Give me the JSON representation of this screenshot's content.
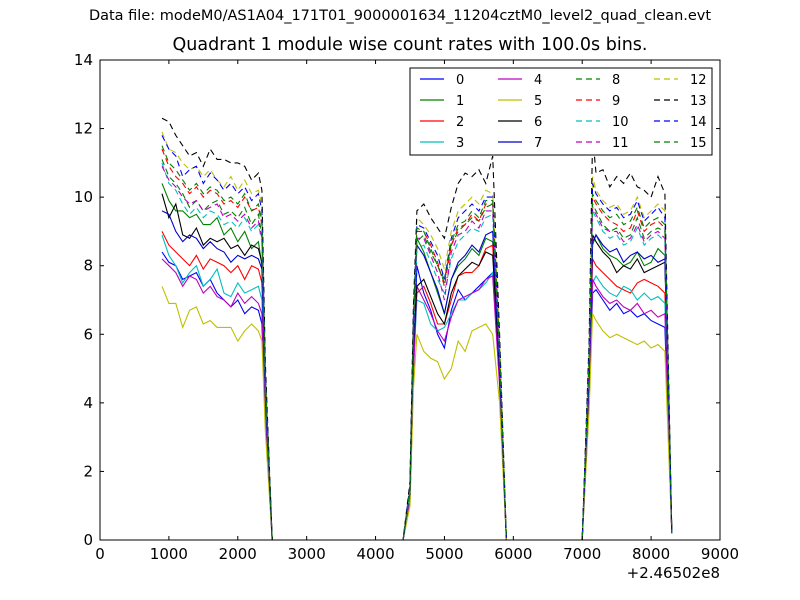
{
  "figure": {
    "suptitle": "Data file: modeM0/AS1A04_171T01_9000001634_11204cztM0_level2_quad_clean.evt"
  },
  "chart_data": {
    "type": "line",
    "title": "Quadrant 1 module wise count rates with 100.0s bins.",
    "xlabel": "",
    "ylabel": "",
    "x_offset_label": "+2.46502e8",
    "xlim": [
      0,
      9000
    ],
    "ylim": [
      0,
      14
    ],
    "xticks": [
      "0",
      "1000",
      "2000",
      "3000",
      "4000",
      "5000",
      "6000",
      "7000",
      "8000",
      "9000"
    ],
    "yticks": [
      "0",
      "2",
      "4",
      "6",
      "8",
      "10",
      "12",
      "14"
    ],
    "grid": false,
    "legend": {
      "placement": "top-right",
      "columns": 4
    },
    "x": [
      900,
      1000,
      1100,
      1200,
      1300,
      1400,
      1500,
      1600,
      1700,
      1800,
      1900,
      2000,
      2100,
      2200,
      2300,
      2350,
      2400,
      2500,
      3000,
      4000,
      4400,
      4500,
      4550,
      4600,
      4700,
      4800,
      4900,
      5000,
      5100,
      5200,
      5300,
      5400,
      5500,
      5600,
      5700,
      5800,
      5900,
      6000,
      7000,
      7100,
      7150,
      7200,
      7300,
      7400,
      7500,
      7600,
      7700,
      7800,
      7900,
      8000,
      8100,
      8200,
      8300
    ],
    "series": [
      {
        "name": "0",
        "color": "#0000ff",
        "dash": "solid",
        "values": [
          8.4,
          8.1,
          8.0,
          7.6,
          7.7,
          7.8,
          7.4,
          7.6,
          7.2,
          7.0,
          6.8,
          7.0,
          6.6,
          6.8,
          6.7,
          6.3,
          3.6,
          0,
          0,
          0,
          0,
          1.2,
          5.0,
          8.0,
          7.2,
          6.7,
          6.0,
          5.6,
          6.7,
          7.3,
          7.0,
          7.2,
          7.4,
          7.6,
          7.8,
          4.6,
          0,
          0,
          0,
          4.0,
          7.2,
          7.3,
          7.0,
          6.7,
          6.9,
          6.6,
          6.7,
          6.5,
          6.6,
          6.4,
          6.3,
          6.2,
          0.2
        ]
      },
      {
        "name": "1",
        "color": "#008000",
        "dash": "solid",
        "values": [
          10.4,
          9.9,
          9.6,
          9.6,
          9.4,
          9.5,
          9.2,
          9.2,
          9.4,
          8.9,
          9.1,
          8.7,
          9.0,
          8.5,
          8.7,
          8.0,
          4.2,
          0,
          0,
          0,
          0,
          1.4,
          5.8,
          8.8,
          8.4,
          7.8,
          7.2,
          6.6,
          7.6,
          8.0,
          8.2,
          8.5,
          8.3,
          8.8,
          8.7,
          5.0,
          0,
          0,
          0,
          4.8,
          8.6,
          8.9,
          8.5,
          8.3,
          8.2,
          8.0,
          8.1,
          8.4,
          8.0,
          8.1,
          8.5,
          8.3,
          0.2
        ]
      },
      {
        "name": "2",
        "color": "#ff0000",
        "dash": "solid",
        "values": [
          9.0,
          8.6,
          8.4,
          8.2,
          8.0,
          8.3,
          7.9,
          8.2,
          8.1,
          8.0,
          7.8,
          8.0,
          7.6,
          8.0,
          7.9,
          7.5,
          4.0,
          0,
          0,
          0,
          0,
          1.3,
          5.2,
          7.2,
          7.4,
          6.9,
          6.3,
          6.3,
          7.0,
          7.7,
          7.8,
          7.8,
          8.0,
          8.5,
          8.6,
          4.8,
          0,
          0,
          0,
          4.6,
          8.2,
          8.0,
          7.8,
          7.6,
          7.4,
          7.3,
          7.2,
          7.5,
          7.6,
          7.5,
          7.4,
          7.2,
          0.2
        ]
      },
      {
        "name": "3",
        "color": "#00bfbf",
        "dash": "solid",
        "values": [
          8.9,
          8.3,
          8.0,
          7.5,
          7.8,
          8.0,
          7.4,
          7.6,
          7.9,
          7.2,
          7.1,
          7.5,
          7.2,
          7.3,
          7.4,
          7.0,
          3.8,
          0,
          0,
          0,
          0,
          1.2,
          5.0,
          7.0,
          6.9,
          6.3,
          6.1,
          6.2,
          6.6,
          7.0,
          7.0,
          7.2,
          7.3,
          7.5,
          7.8,
          4.6,
          0,
          0,
          0,
          4.4,
          7.5,
          7.7,
          7.4,
          7.2,
          7.1,
          7.4,
          7.3,
          7.0,
          7.2,
          7.0,
          7.1,
          6.9,
          0.2
        ]
      },
      {
        "name": "4",
        "color": "#bf00bf",
        "dash": "solid",
        "values": [
          8.2,
          8.0,
          7.8,
          7.4,
          7.7,
          7.6,
          7.2,
          7.4,
          7.1,
          7.0,
          6.8,
          7.2,
          6.9,
          7.1,
          6.9,
          6.6,
          3.6,
          0,
          0,
          0,
          0,
          1.1,
          4.8,
          7.4,
          7.0,
          6.6,
          6.1,
          5.8,
          6.5,
          7.0,
          7.1,
          7.2,
          7.3,
          7.6,
          7.7,
          4.5,
          0,
          0,
          0,
          4.2,
          7.6,
          7.4,
          7.1,
          6.9,
          7.0,
          6.8,
          6.7,
          6.9,
          6.6,
          6.7,
          6.5,
          6.6,
          0.2
        ]
      },
      {
        "name": "5",
        "color": "#bfbf00",
        "dash": "solid",
        "values": [
          7.4,
          6.9,
          6.9,
          6.2,
          6.7,
          6.8,
          6.3,
          6.4,
          6.2,
          6.2,
          6.2,
          5.8,
          6.1,
          6.3,
          6.1,
          5.8,
          3.2,
          0,
          0,
          0,
          0,
          1.0,
          4.4,
          6.0,
          5.5,
          5.3,
          5.2,
          4.7,
          5.0,
          5.8,
          5.5,
          6.1,
          6.2,
          6.3,
          6.0,
          4.0,
          0,
          0,
          0,
          3.8,
          6.6,
          6.4,
          6.1,
          5.9,
          6.0,
          5.9,
          5.8,
          5.7,
          5.8,
          5.6,
          5.7,
          5.5,
          0.2
        ]
      },
      {
        "name": "6",
        "color": "#000000",
        "dash": "solid",
        "values": [
          10.1,
          9.4,
          9.8,
          8.9,
          8.8,
          9.1,
          8.6,
          8.8,
          8.7,
          8.8,
          8.5,
          8.6,
          8.3,
          8.6,
          8.5,
          8.1,
          4.3,
          0,
          0,
          0,
          0,
          1.4,
          5.6,
          7.4,
          7.6,
          7.1,
          6.6,
          6.3,
          7.2,
          7.7,
          7.9,
          8.1,
          8.0,
          8.4,
          8.3,
          4.9,
          0,
          0,
          0,
          4.7,
          8.9,
          8.7,
          8.4,
          8.2,
          7.8,
          8.0,
          7.9,
          8.2,
          7.8,
          7.9,
          8.0,
          8.1,
          0.2
        ]
      },
      {
        "name": "7",
        "color": "#0000cc",
        "dash": "solid",
        "values": [
          9.6,
          9.5,
          9.0,
          8.7,
          8.9,
          8.8,
          8.5,
          8.7,
          8.5,
          8.4,
          8.1,
          8.3,
          8.2,
          8.3,
          8.2,
          7.9,
          4.2,
          0,
          0,
          0,
          0,
          1.4,
          5.6,
          8.6,
          8.3,
          7.8,
          7.3,
          6.6,
          7.6,
          8.1,
          8.3,
          8.6,
          8.4,
          8.9,
          9.0,
          5.0,
          0,
          0,
          0,
          4.8,
          8.7,
          8.9,
          8.6,
          8.4,
          8.5,
          8.1,
          8.3,
          8.4,
          8.2,
          8.3,
          8.1,
          8.2,
          0.2
        ]
      },
      {
        "name": "8",
        "color": "#008000",
        "dash": "dashed",
        "values": [
          11.1,
          10.6,
          10.4,
          10.1,
          9.7,
          9.9,
          9.6,
          9.8,
          9.9,
          9.5,
          9.6,
          9.4,
          9.7,
          9.2,
          9.5,
          8.9,
          4.6,
          0,
          0,
          0,
          0,
          1.5,
          6.1,
          8.7,
          8.9,
          8.4,
          8.0,
          7.6,
          8.6,
          9.0,
          9.2,
          9.4,
          9.3,
          9.7,
          9.8,
          5.4,
          0,
          0,
          0,
          5.2,
          9.8,
          9.6,
          9.2,
          9.0,
          9.1,
          8.8,
          8.9,
          9.4,
          8.8,
          9.0,
          9.1,
          9.0,
          0.2
        ]
      },
      {
        "name": "9",
        "color": "#ff0000",
        "dash": "dashed",
        "values": [
          11.4,
          10.9,
          10.6,
          10.4,
          10.1,
          10.3,
          10.0,
          10.2,
          10.1,
          9.8,
          9.9,
          9.7,
          10.0,
          9.6,
          9.7,
          9.2,
          4.8,
          0,
          0,
          0,
          0,
          1.5,
          6.2,
          9.0,
          9.0,
          8.6,
          8.1,
          7.4,
          8.6,
          9.1,
          9.2,
          9.5,
          9.3,
          9.8,
          9.8,
          5.5,
          0,
          0,
          0,
          5.4,
          10.0,
          9.8,
          9.5,
          9.3,
          9.2,
          9.0,
          9.1,
          9.6,
          9.0,
          9.2,
          9.3,
          9.1,
          0.2
        ]
      },
      {
        "name": "10",
        "color": "#00bfbf",
        "dash": "dashed",
        "values": [
          11.0,
          10.4,
          10.2,
          9.8,
          9.5,
          9.7,
          9.4,
          9.6,
          9.5,
          9.2,
          9.3,
          9.1,
          9.4,
          9.0,
          9.2,
          8.7,
          4.5,
          0,
          0,
          0,
          0,
          1.4,
          5.9,
          8.5,
          8.6,
          8.1,
          7.6,
          7.2,
          8.2,
          8.7,
          8.9,
          9.1,
          9.0,
          9.4,
          9.5,
          5.3,
          0,
          0,
          0,
          5.1,
          9.6,
          9.4,
          9.0,
          8.8,
          8.9,
          8.6,
          8.7,
          9.1,
          8.6,
          8.8,
          8.9,
          8.7,
          0.2
        ]
      },
      {
        "name": "11",
        "color": "#bf00bf",
        "dash": "dashed",
        "values": [
          10.9,
          10.5,
          10.3,
          10.0,
          9.8,
          9.9,
          9.6,
          9.7,
          9.8,
          9.4,
          9.5,
          9.3,
          9.5,
          9.1,
          9.3,
          8.8,
          4.6,
          0,
          0,
          0,
          0,
          1.4,
          6.0,
          8.8,
          8.8,
          8.3,
          7.8,
          7.0,
          8.4,
          8.9,
          9.0,
          9.3,
          9.1,
          9.6,
          9.6,
          5.4,
          0,
          0,
          0,
          5.2,
          9.7,
          9.5,
          9.1,
          9.0,
          9.0,
          8.7,
          8.8,
          9.2,
          8.7,
          8.9,
          9.0,
          8.8,
          0.2
        ]
      },
      {
        "name": "12",
        "color": "#bfbf00",
        "dash": "dashed",
        "values": [
          11.9,
          11.4,
          11.3,
          11.0,
          10.8,
          10.9,
          10.6,
          10.8,
          10.5,
          10.3,
          10.6,
          10.2,
          10.5,
          10.1,
          10.2,
          9.8,
          5.0,
          0,
          0,
          0,
          0,
          1.6,
          6.6,
          9.4,
          9.2,
          8.9,
          8.5,
          7.9,
          9.0,
          9.6,
          9.8,
          10.0,
          9.8,
          10.2,
          10.1,
          5.8,
          0,
          0,
          0,
          5.6,
          10.6,
          10.2,
          9.9,
          9.7,
          9.8,
          9.5,
          9.6,
          10.0,
          9.4,
          9.6,
          9.8,
          9.6,
          0.2
        ]
      },
      {
        "name": "13",
        "color": "#000000",
        "dash": "dashed",
        "values": [
          12.3,
          12.2,
          11.8,
          11.5,
          11.2,
          11.3,
          10.9,
          11.4,
          11.1,
          11.1,
          11.0,
          11.0,
          10.9,
          10.5,
          10.7,
          10.2,
          5.2,
          0,
          0,
          0,
          0,
          1.7,
          6.8,
          9.6,
          9.8,
          9.4,
          9.1,
          8.8,
          9.7,
          10.4,
          10.7,
          10.6,
          10.8,
          10.4,
          11.2,
          6.0,
          0,
          0,
          0,
          5.8,
          11.8,
          10.7,
          10.8,
          10.3,
          10.6,
          10.4,
          10.7,
          10.3,
          10.2,
          10.0,
          10.6,
          10.1,
          0.2
        ]
      },
      {
        "name": "14",
        "color": "#0000ff",
        "dash": "dashed",
        "values": [
          11.8,
          11.4,
          11.2,
          10.6,
          10.8,
          10.9,
          10.4,
          10.7,
          10.5,
          10.2,
          10.4,
          10.1,
          10.3,
          9.9,
          10.1,
          9.6,
          4.9,
          0,
          0,
          0,
          0,
          1.6,
          6.5,
          9.2,
          9.1,
          8.7,
          8.3,
          7.6,
          8.8,
          9.4,
          9.6,
          9.8,
          9.6,
          10.0,
          10.0,
          5.7,
          0,
          0,
          0,
          5.5,
          10.4,
          10.1,
          9.8,
          9.6,
          9.7,
          9.4,
          9.5,
          9.9,
          9.3,
          9.5,
          9.7,
          9.4,
          0.2
        ]
      },
      {
        "name": "15",
        "color": "#008000",
        "dash": "dashed",
        "values": [
          11.5,
          11.0,
          10.8,
          10.5,
          10.2,
          10.4,
          10.1,
          10.3,
          10.2,
          9.9,
          10.0,
          9.8,
          10.1,
          9.6,
          9.8,
          9.3,
          4.8,
          0,
          0,
          0,
          0,
          1.5,
          6.3,
          9.1,
          9.0,
          8.5,
          8.0,
          7.5,
          8.7,
          9.2,
          9.3,
          9.6,
          9.4,
          9.9,
          9.9,
          5.5,
          0,
          0,
          0,
          5.3,
          10.1,
          9.9,
          9.6,
          9.4,
          9.5,
          9.2,
          9.3,
          9.7,
          9.1,
          9.3,
          9.4,
          9.2,
          0.2
        ]
      }
    ]
  }
}
